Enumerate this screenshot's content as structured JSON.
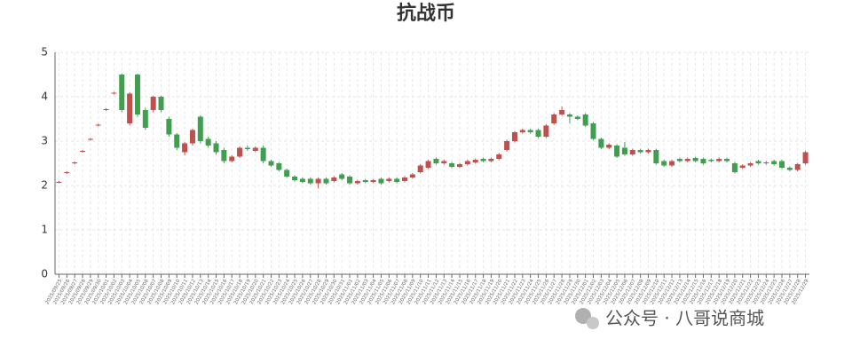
{
  "chart_data": {
    "type": "candlestick",
    "title": "抗战币",
    "annotation": "公众号 · 八哥说商城",
    "up_color": "#c0504d",
    "down_color": "#3f9f4f",
    "grid": true,
    "ylim": [
      0,
      5
    ],
    "yticks": [
      0,
      1,
      2,
      3,
      4,
      5
    ],
    "categories": [
      "2025/09/25",
      "2025/09/26",
      "2025/09/27",
      "2025/09/28",
      "2025/09/29",
      "2025/09/30",
      "2025/10/01",
      "2025/10/02",
      "2025/10/03",
      "2025/10/04",
      "2025/10/05",
      "2025/10/06",
      "2025/10/07",
      "2025/10/08",
      "2025/10/09",
      "2025/10/10",
      "2025/10/11",
      "2025/10/12",
      "2025/10/13",
      "2025/10/14",
      "2025/10/15",
      "2025/10/16",
      "2025/10/17",
      "2025/10/18",
      "2025/10/19",
      "2025/10/20",
      "2025/10/21",
      "2025/10/22",
      "2025/10/23",
      "2025/10/24",
      "2025/10/25",
      "2025/10/26",
      "2025/10/27",
      "2025/10/28",
      "2025/10/29",
      "2025/10/30",
      "2025/10/31",
      "2025/11/01",
      "2025/11/02",
      "2025/11/03",
      "2025/11/04",
      "2025/11/05",
      "2025/11/06",
      "2025/11/07",
      "2025/11/08",
      "2025/11/09",
      "2025/11/10",
      "2025/11/11",
      "2025/11/12",
      "2025/11/13",
      "2025/11/14",
      "2025/11/15",
      "2025/11/16",
      "2025/11/17",
      "2025/11/18",
      "2025/11/19",
      "2025/11/20",
      "2025/11/21",
      "2025/11/22",
      "2025/11/23",
      "2025/11/24",
      "2025/11/25",
      "2025/11/26",
      "2025/11/27",
      "2025/11/28",
      "2025/11/29",
      "2025/11/30",
      "2025/12/01",
      "2025/12/02",
      "2025/12/03",
      "2025/12/04",
      "2025/12/05",
      "2025/12/06",
      "2025/12/07",
      "2025/12/08",
      "2025/12/09",
      "2025/12/10",
      "2025/12/11",
      "2025/12/12",
      "2025/12/13",
      "2025/12/14",
      "2025/12/15",
      "2025/12/16",
      "2025/12/17",
      "2025/12/18",
      "2025/12/19",
      "2025/12/20",
      "2025/12/21",
      "2025/12/22",
      "2025/12/23",
      "2025/12/24",
      "2025/12/25",
      "2025/12/26",
      "2025/12/27",
      "2025/12/28",
      "2025/12/29"
    ],
    "values": [
      [
        2.07,
        2.08,
        2.05,
        2.1
      ],
      [
        2.28,
        2.3,
        2.26,
        2.32
      ],
      [
        2.5,
        2.52,
        2.48,
        2.54
      ],
      [
        2.76,
        2.78,
        2.74,
        2.8
      ],
      [
        3.03,
        3.05,
        3.01,
        3.07
      ],
      [
        3.35,
        3.37,
        3.33,
        3.39
      ],
      [
        3.7,
        3.72,
        3.68,
        3.74
      ],
      [
        4.07,
        4.09,
        4.05,
        4.11
      ],
      [
        4.5,
        3.7,
        3.65,
        4.52
      ],
      [
        3.4,
        4.07,
        3.35,
        4.1
      ],
      [
        4.5,
        3.6,
        3.55,
        4.52
      ],
      [
        3.7,
        3.3,
        3.25,
        3.75
      ],
      [
        3.7,
        4.0,
        3.65,
        4.02
      ],
      [
        4.0,
        3.7,
        3.65,
        4.02
      ],
      [
        3.5,
        3.15,
        3.1,
        3.55
      ],
      [
        3.15,
        2.85,
        2.8,
        3.18
      ],
      [
        2.75,
        2.95,
        2.68,
        2.98
      ],
      [
        2.95,
        3.25,
        2.9,
        3.28
      ],
      [
        3.55,
        3.0,
        2.95,
        3.58
      ],
      [
        3.05,
        2.9,
        2.85,
        3.1
      ],
      [
        2.95,
        2.75,
        2.7,
        3.0
      ],
      [
        2.8,
        2.55,
        2.5,
        2.85
      ],
      [
        2.55,
        2.65,
        2.52,
        2.68
      ],
      [
        2.65,
        2.85,
        2.62,
        2.88
      ],
      [
        2.85,
        2.82,
        2.78,
        2.9
      ],
      [
        2.78,
        2.85,
        2.75,
        2.88
      ],
      [
        2.85,
        2.55,
        2.5,
        2.9
      ],
      [
        2.55,
        2.45,
        2.42,
        2.58
      ],
      [
        2.5,
        2.35,
        2.32,
        2.53
      ],
      [
        2.35,
        2.2,
        2.17,
        2.38
      ],
      [
        2.2,
        2.12,
        2.09,
        2.23
      ],
      [
        2.15,
        2.08,
        2.05,
        2.18
      ],
      [
        2.15,
        2.05,
        2.02,
        2.18
      ],
      [
        2.05,
        2.15,
        1.93,
        2.18
      ],
      [
        2.15,
        2.05,
        2.02,
        2.18
      ],
      [
        2.1,
        2.18,
        2.07,
        2.21
      ],
      [
        2.25,
        2.15,
        2.12,
        2.28
      ],
      [
        2.2,
        2.05,
        2.02,
        2.23
      ],
      [
        2.05,
        2.1,
        2.02,
        2.13
      ],
      [
        2.12,
        2.08,
        2.05,
        2.15
      ],
      [
        2.08,
        2.12,
        2.05,
        2.15
      ],
      [
        2.15,
        2.05,
        2.02,
        2.18
      ],
      [
        2.1,
        2.15,
        2.07,
        2.18
      ],
      [
        2.15,
        2.08,
        2.05,
        2.18
      ],
      [
        2.1,
        2.18,
        2.07,
        2.21
      ],
      [
        2.18,
        2.25,
        2.15,
        2.28
      ],
      [
        2.3,
        2.45,
        2.27,
        2.48
      ],
      [
        2.4,
        2.55,
        2.37,
        2.58
      ],
      [
        2.6,
        2.5,
        2.47,
        2.63
      ],
      [
        2.5,
        2.55,
        2.47,
        2.58
      ],
      [
        2.5,
        2.42,
        2.39,
        2.53
      ],
      [
        2.42,
        2.48,
        2.39,
        2.51
      ],
      [
        2.48,
        2.55,
        2.45,
        2.58
      ],
      [
        2.52,
        2.58,
        2.49,
        2.61
      ],
      [
        2.6,
        2.55,
        2.52,
        2.63
      ],
      [
        2.55,
        2.6,
        2.52,
        2.63
      ],
      [
        2.6,
        2.7,
        2.57,
        2.73
      ],
      [
        2.8,
        3.0,
        2.77,
        3.03
      ],
      [
        3.0,
        3.2,
        2.97,
        3.23
      ],
      [
        3.2,
        3.25,
        3.17,
        3.28
      ],
      [
        3.25,
        3.2,
        3.17,
        3.28
      ],
      [
        3.25,
        3.1,
        3.07,
        3.28
      ],
      [
        3.1,
        3.35,
        3.07,
        3.38
      ],
      [
        3.4,
        3.6,
        3.37,
        3.63
      ],
      [
        3.6,
        3.7,
        3.57,
        3.78
      ],
      [
        3.6,
        3.55,
        3.4,
        3.63
      ],
      [
        3.55,
        3.5,
        3.47,
        3.58
      ],
      [
        3.6,
        3.35,
        3.32,
        3.63
      ],
      [
        3.4,
        3.05,
        3.02,
        3.43
      ],
      [
        3.05,
        2.85,
        2.82,
        3.08
      ],
      [
        2.85,
        2.92,
        2.82,
        2.95
      ],
      [
        2.9,
        2.65,
        2.62,
        2.93
      ],
      [
        2.85,
        2.7,
        2.67,
        2.98
      ],
      [
        2.7,
        2.8,
        2.67,
        2.83
      ],
      [
        2.8,
        2.75,
        2.72,
        2.83
      ],
      [
        2.75,
        2.8,
        2.72,
        2.83
      ],
      [
        2.8,
        2.5,
        2.47,
        2.83
      ],
      [
        2.55,
        2.45,
        2.42,
        2.58
      ],
      [
        2.45,
        2.55,
        2.42,
        2.58
      ],
      [
        2.6,
        2.55,
        2.52,
        2.63
      ],
      [
        2.55,
        2.6,
        2.52,
        2.63
      ],
      [
        2.62,
        2.55,
        2.52,
        2.65
      ],
      [
        2.6,
        2.5,
        2.47,
        2.63
      ],
      [
        2.58,
        2.55,
        2.52,
        2.61
      ],
      [
        2.55,
        2.6,
        2.52,
        2.63
      ],
      [
        2.6,
        2.55,
        2.52,
        2.63
      ],
      [
        2.5,
        2.3,
        2.27,
        2.53
      ],
      [
        2.4,
        2.45,
        2.37,
        2.48
      ],
      [
        2.45,
        2.5,
        2.42,
        2.53
      ],
      [
        2.55,
        2.5,
        2.47,
        2.58
      ],
      [
        2.5,
        2.52,
        2.47,
        2.55
      ],
      [
        2.55,
        2.48,
        2.45,
        2.58
      ],
      [
        2.55,
        2.4,
        2.37,
        2.58
      ],
      [
        2.4,
        2.35,
        2.32,
        2.43
      ],
      [
        2.35,
        2.48,
        2.32,
        2.51
      ],
      [
        2.5,
        2.75,
        2.47,
        2.78
      ]
    ]
  }
}
